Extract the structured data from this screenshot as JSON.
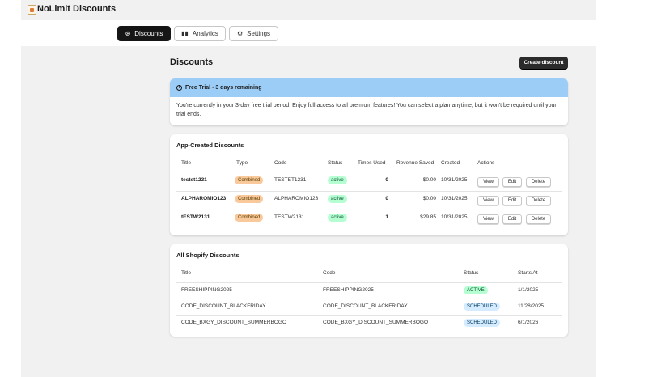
{
  "app": {
    "title": "NoLimit Discounts"
  },
  "nav": {
    "tabs": [
      {
        "label": "Discounts",
        "icon": "discount-icon",
        "active": true
      },
      {
        "label": "Analytics",
        "icon": "chart-icon",
        "active": false
      },
      {
        "label": "Settings",
        "icon": "gear-icon",
        "active": false
      }
    ]
  },
  "page": {
    "title": "Discounts",
    "create_label": "Create discount"
  },
  "trial": {
    "banner": "Free Trial - 3 days remaining",
    "text": "You're currently in your 3-day free trial period. Enjoy full access to all premium features! You can select a plan anytime, but it won't be required until your trial ends."
  },
  "app_discounts": {
    "title": "App-Created Discounts",
    "headers": [
      "Title",
      "Type",
      "Code",
      "Status",
      "Times Used",
      "Revenue Saved",
      "Created",
      "Actions"
    ],
    "rows": [
      {
        "title": "testet1231",
        "type": "Combined",
        "code": "TESTET1231",
        "status": "active",
        "times_used": "0",
        "revenue": "$0.00",
        "created": "10/31/2025"
      },
      {
        "title": "ALPHAROMIO123",
        "type": "Combined",
        "code": "ALPHAROMIO123",
        "status": "active",
        "times_used": "0",
        "revenue": "$0.00",
        "created": "10/31/2025"
      },
      {
        "title": "tESTW2131",
        "type": "Combined",
        "code": "TESTW2131",
        "status": "active",
        "times_used": "1",
        "revenue": "$29.85",
        "created": "10/31/2025"
      }
    ],
    "actions": {
      "view": "View",
      "edit": "Edit",
      "delete": "Delete"
    }
  },
  "shopify_discounts": {
    "title": "All Shopify Discounts",
    "headers": [
      "Title",
      "Code",
      "Status",
      "Starts At"
    ],
    "rows": [
      {
        "title": "FREESHIPPING2025",
        "code": "FREESHIPPING2025",
        "status": "ACTIVE",
        "starts": "1/1/2025"
      },
      {
        "title": "CODE_DISCOUNT_BLACKFRIDAY",
        "code": "CODE_DISCOUNT_BLACKFRIDAY",
        "status": "SCHEDULED",
        "starts": "11/28/2025"
      },
      {
        "title": "CODE_BXGY_DISCOUNT_SUMMERBOGO",
        "code": "CODE_BXGY_DISCOUNT_SUMMERBOGO",
        "status": "SCHEDULED",
        "starts": "6/1/2026"
      }
    ]
  },
  "colors": {
    "banner": "#9ccdf6",
    "primary": "#161616",
    "active_badge": "#b4fed2",
    "combined_badge": "#f9c89b",
    "scheduled_badge": "#d5ebff"
  }
}
